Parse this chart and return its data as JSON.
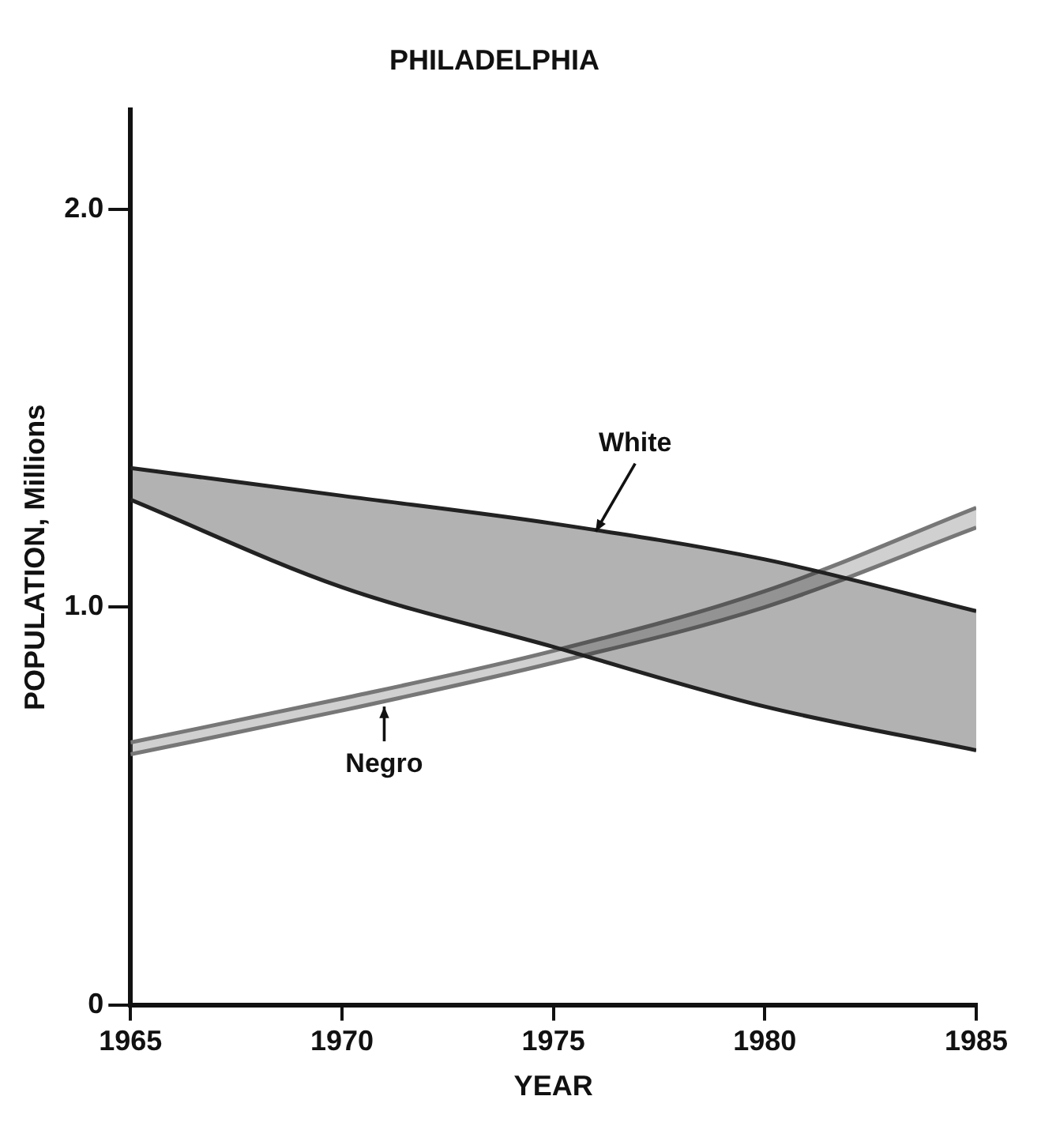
{
  "chart_data": {
    "type": "line",
    "title": "PHILADELPHIA",
    "xlabel": "YEAR",
    "ylabel": "POPULATION, Millions",
    "x": [
      1965,
      1970,
      1975,
      1980,
      1985
    ],
    "series": [
      {
        "color": "#222222",
        "values": [
          1.27,
          1.05,
          0.9,
          0.75,
          0.64
        ]
      },
      {
        "type": "area",
        "color": "#222222",
        "values": [
          1.35,
          1.28,
          1.21,
          1.12,
          0.99
        ]
      },
      {
        "color": "#777777",
        "values": [
          0.63,
          0.74,
          0.86,
          1.0,
          1.2
        ]
      },
      {
        "type": "area",
        "color": "#777777",
        "values": [
          0.66,
          0.77,
          0.89,
          1.04,
          1.25
        ]
      }
    ],
    "annotations": [
      {
        "text": "White",
        "x": 1976,
        "y": 1.19
      },
      {
        "text": "Negro",
        "x": 1971,
        "y": 0.75
      }
    ],
    "xlim": [
      1965,
      1985
    ],
    "xticks": [
      1965,
      1970,
      1975,
      1980,
      1985
    ],
    "ylim": [
      0,
      2.25
    ],
    "yticks": [
      0,
      {
        "value": 1,
        "label": "1.0"
      },
      {
        "value": 2,
        "label": "2.0"
      }
    ],
    "grid": false,
    "legend": false
  }
}
